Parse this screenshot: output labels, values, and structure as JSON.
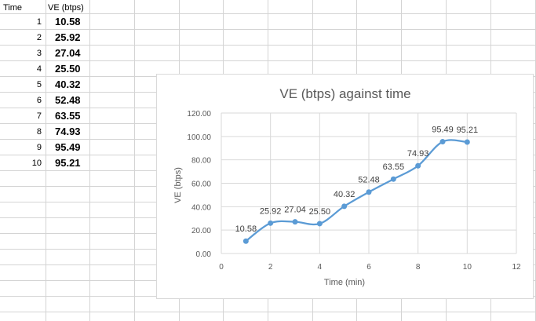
{
  "sheet": {
    "headers": {
      "time": "Time",
      "ve": "VE (btps)"
    },
    "rows": [
      {
        "time": "1",
        "ve": "10.58"
      },
      {
        "time": "2",
        "ve": "25.92"
      },
      {
        "time": "3",
        "ve": "27.04"
      },
      {
        "time": "4",
        "ve": "25.50"
      },
      {
        "time": "5",
        "ve": "40.32"
      },
      {
        "time": "6",
        "ve": "52.48"
      },
      {
        "time": "7",
        "ve": "63.55"
      },
      {
        "time": "8",
        "ve": "74.93"
      },
      {
        "time": "9",
        "ve": "95.49"
      },
      {
        "time": "10",
        "ve": "95.21"
      }
    ],
    "grid_color": "#d4d4d4"
  },
  "chart_data": {
    "type": "line",
    "title": "VE (btps) against time",
    "xlabel": "Time (min)",
    "ylabel": "VE (btps)",
    "xlim": [
      0,
      12
    ],
    "ylim": [
      0,
      120
    ],
    "x_ticks": [
      "0",
      "2",
      "4",
      "6",
      "8",
      "10",
      "12"
    ],
    "y_ticks": [
      "0.00",
      "20.00",
      "40.00",
      "60.00",
      "80.00",
      "100.00",
      "120.00"
    ],
    "grid": true,
    "legend": "none",
    "smoothed": true,
    "color": "#5b9bd5",
    "series": [
      {
        "x": [
          1,
          2,
          3,
          4,
          5,
          6,
          7,
          8,
          9,
          10
        ],
        "values": [
          10.58,
          25.92,
          27.04,
          25.5,
          40.32,
          52.48,
          63.55,
          74.93,
          95.49,
          95.21
        ],
        "labels": [
          "10.58",
          "25.92",
          "27.04",
          "25.50",
          "40.32",
          "52.48",
          "63.55",
          "74.93",
          "95.49",
          "95.21"
        ]
      }
    ]
  }
}
